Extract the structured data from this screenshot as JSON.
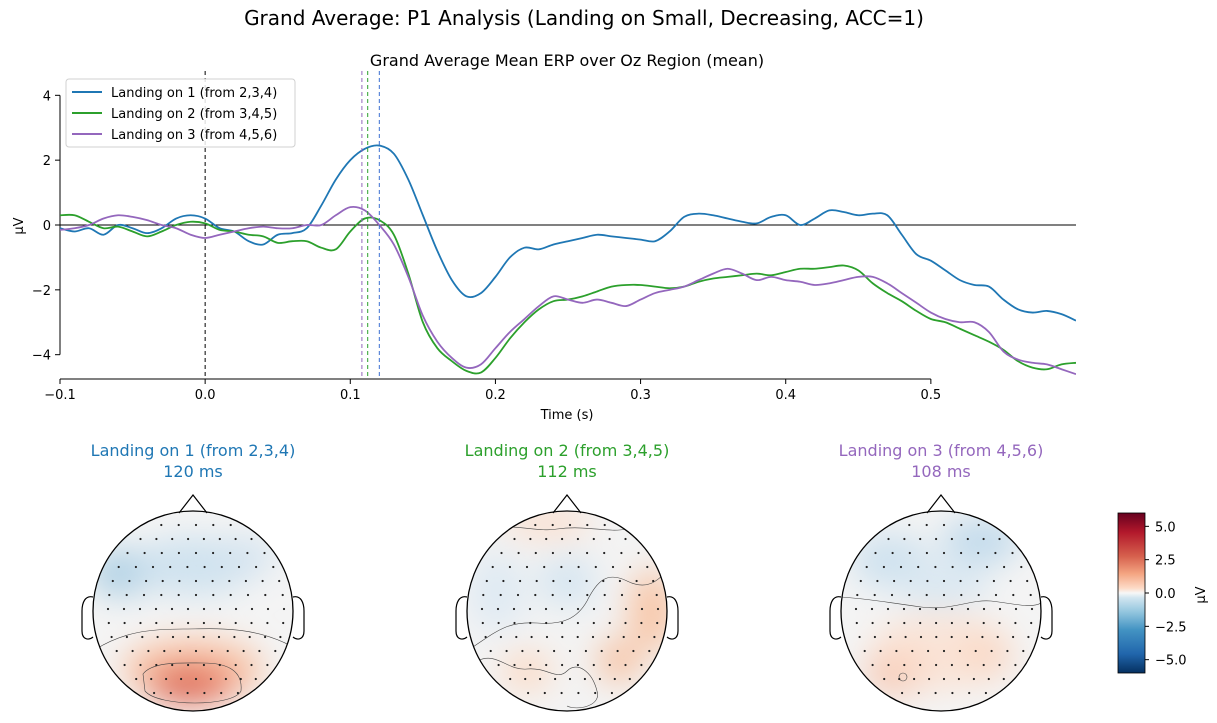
{
  "figure": {
    "suptitle": "Grand Average: P1 Analysis (Landing on Small, Decreasing, ACC=1)"
  },
  "chart_data": [
    {
      "type": "line",
      "title": "Grand Average Mean ERP over Oz Region (mean)",
      "xlabel": "Time (s)",
      "ylabel": "µV",
      "xlim": [
        -0.1,
        0.6
      ],
      "ylim": [
        -4.75,
        4.75
      ],
      "xticks": [
        -0.1,
        0.0,
        0.1,
        0.2,
        0.3,
        0.4,
        0.5
      ],
      "xtick_labels": [
        "−0.1",
        "0.0",
        "0.1",
        "0.2",
        "0.3",
        "0.4",
        "0.5"
      ],
      "yticks": [
        -4,
        -2,
        0,
        2,
        4
      ],
      "ytick_labels": [
        "−4",
        "−2",
        "0",
        "2",
        "4"
      ],
      "legend_position": "top-left",
      "event_line_x": 0.0,
      "series": [
        {
          "name": "Landing on 1 (from 2,3,4)",
          "color": "#1f77b4",
          "peak_time": 0.12,
          "x": [
            -0.1,
            -0.09,
            -0.08,
            -0.07,
            -0.06,
            -0.05,
            -0.04,
            -0.03,
            -0.02,
            -0.01,
            0,
            0.01,
            0.02,
            0.03,
            0.04,
            0.05,
            0.06,
            0.07,
            0.08,
            0.09,
            0.1,
            0.11,
            0.12,
            0.13,
            0.14,
            0.15,
            0.16,
            0.17,
            0.18,
            0.19,
            0.2,
            0.21,
            0.22,
            0.23,
            0.24,
            0.25,
            0.26,
            0.27,
            0.28,
            0.29,
            0.3,
            0.31,
            0.32,
            0.33,
            0.34,
            0.35,
            0.36,
            0.37,
            0.38,
            0.39,
            0.4,
            0.41,
            0.42,
            0.43,
            0.44,
            0.45,
            0.46,
            0.47,
            0.48,
            0.49,
            0.5,
            0.51,
            0.52,
            0.53,
            0.54,
            0.55,
            0.56,
            0.57,
            0.58,
            0.59,
            0.6
          ],
          "y": [
            -0.1,
            -0.2,
            -0.1,
            -0.3,
            0.0,
            -0.1,
            -0.25,
            -0.1,
            0.2,
            0.3,
            0.2,
            -0.1,
            -0.2,
            -0.5,
            -0.6,
            -0.3,
            -0.25,
            -0.1,
            0.6,
            1.4,
            2.0,
            2.35,
            2.45,
            2.2,
            1.4,
            0.3,
            -0.8,
            -1.7,
            -2.2,
            -2.1,
            -1.6,
            -1.0,
            -0.7,
            -0.75,
            -0.6,
            -0.5,
            -0.4,
            -0.3,
            -0.35,
            -0.4,
            -0.45,
            -0.5,
            -0.2,
            0.25,
            0.35,
            0.3,
            0.2,
            0.1,
            0.05,
            0.25,
            0.3,
            0.0,
            0.2,
            0.45,
            0.4,
            0.3,
            0.35,
            0.3,
            -0.3,
            -0.9,
            -1.1,
            -1.4,
            -1.7,
            -1.85,
            -1.9,
            -2.3,
            -2.6,
            -2.7,
            -2.65,
            -2.75,
            -2.95
          ]
        },
        {
          "name": "Landing on 2 (from 3,4,5)",
          "color": "#2ca02c",
          "peak_time": 0.112,
          "x": [
            -0.1,
            -0.09,
            -0.08,
            -0.07,
            -0.06,
            -0.05,
            -0.04,
            -0.03,
            -0.02,
            -0.01,
            0,
            0.01,
            0.02,
            0.03,
            0.04,
            0.05,
            0.06,
            0.07,
            0.08,
            0.09,
            0.1,
            0.11,
            0.12,
            0.13,
            0.14,
            0.15,
            0.16,
            0.17,
            0.18,
            0.19,
            0.2,
            0.21,
            0.22,
            0.23,
            0.24,
            0.25,
            0.26,
            0.27,
            0.28,
            0.29,
            0.3,
            0.31,
            0.32,
            0.33,
            0.34,
            0.35,
            0.36,
            0.37,
            0.38,
            0.39,
            0.4,
            0.41,
            0.42,
            0.43,
            0.44,
            0.45,
            0.46,
            0.47,
            0.48,
            0.49,
            0.5,
            0.51,
            0.52,
            0.53,
            0.54,
            0.55,
            0.56,
            0.57,
            0.58,
            0.59,
            0.6
          ],
          "y": [
            0.3,
            0.3,
            0.1,
            -0.1,
            -0.05,
            -0.2,
            -0.35,
            -0.2,
            0.0,
            0.1,
            0.05,
            -0.15,
            -0.2,
            -0.3,
            -0.35,
            -0.55,
            -0.5,
            -0.5,
            -0.7,
            -0.75,
            -0.2,
            0.2,
            0.15,
            -0.3,
            -1.5,
            -3.0,
            -3.8,
            -4.2,
            -4.5,
            -4.55,
            -4.1,
            -3.5,
            -3.0,
            -2.6,
            -2.35,
            -2.3,
            -2.2,
            -2.05,
            -1.9,
            -1.85,
            -1.85,
            -1.9,
            -1.95,
            -1.9,
            -1.75,
            -1.65,
            -1.6,
            -1.55,
            -1.5,
            -1.55,
            -1.45,
            -1.35,
            -1.35,
            -1.3,
            -1.25,
            -1.4,
            -1.8,
            -2.1,
            -2.35,
            -2.65,
            -2.9,
            -3.0,
            -3.2,
            -3.4,
            -3.6,
            -3.85,
            -4.2,
            -4.4,
            -4.45,
            -4.3,
            -4.25
          ]
        },
        {
          "name": "Landing on 3 (from 4,5,6)",
          "color": "#9467bd",
          "peak_time": 0.108,
          "x": [
            -0.1,
            -0.09,
            -0.08,
            -0.07,
            -0.06,
            -0.05,
            -0.04,
            -0.03,
            -0.02,
            -0.01,
            0,
            0.01,
            0.02,
            0.03,
            0.04,
            0.05,
            0.06,
            0.07,
            0.08,
            0.09,
            0.1,
            0.11,
            0.12,
            0.13,
            0.14,
            0.15,
            0.16,
            0.17,
            0.18,
            0.19,
            0.2,
            0.21,
            0.22,
            0.23,
            0.24,
            0.25,
            0.26,
            0.27,
            0.28,
            0.29,
            0.3,
            0.31,
            0.32,
            0.33,
            0.34,
            0.35,
            0.36,
            0.37,
            0.38,
            0.39,
            0.4,
            0.41,
            0.42,
            0.43,
            0.44,
            0.45,
            0.46,
            0.47,
            0.48,
            0.49,
            0.5,
            0.51,
            0.52,
            0.53,
            0.54,
            0.55,
            0.56,
            0.57,
            0.58,
            0.59,
            0.6
          ],
          "y": [
            -0.15,
            -0.1,
            0.0,
            0.2,
            0.3,
            0.25,
            0.15,
            0.0,
            -0.1,
            -0.3,
            -0.4,
            -0.3,
            -0.2,
            -0.1,
            -0.05,
            -0.1,
            -0.1,
            0.0,
            0.0,
            0.3,
            0.55,
            0.45,
            0.0,
            -0.6,
            -1.6,
            -2.8,
            -3.6,
            -4.1,
            -4.4,
            -4.3,
            -3.8,
            -3.3,
            -2.9,
            -2.5,
            -2.2,
            -2.3,
            -2.4,
            -2.3,
            -2.4,
            -2.5,
            -2.3,
            -2.1,
            -2.0,
            -1.9,
            -1.7,
            -1.5,
            -1.35,
            -1.5,
            -1.7,
            -1.6,
            -1.7,
            -1.75,
            -1.85,
            -1.8,
            -1.7,
            -1.6,
            -1.6,
            -1.8,
            -2.1,
            -2.4,
            -2.7,
            -2.9,
            -3.0,
            -3.0,
            -3.3,
            -3.9,
            -4.15,
            -4.25,
            -4.3,
            -4.45,
            -4.6
          ]
        }
      ]
    },
    {
      "type": "heatmap",
      "subtype": "topomap",
      "colorbar_label": "µV",
      "colorbar_range": [
        -6,
        6
      ],
      "colorbar_ticks": [
        5.0,
        2.5,
        0.0,
        -2.5,
        -5.0
      ],
      "colorbar_tick_labels": [
        "5.0",
        "2.5",
        "0.0",
        "−2.5",
        "−5.0"
      ],
      "maps": [
        {
          "title": "Landing on 1 (from 2,3,4)",
          "time_label": "120 ms",
          "color": "#1f77b4",
          "pattern": "frontal negative, occipital positive peak ≈ +4 µV"
        },
        {
          "title": "Landing on 2 (from 3,4,5)",
          "time_label": "112 ms",
          "color": "#2ca02c",
          "pattern": "weak, mixed; right temporal positive ≈ +1 µV"
        },
        {
          "title": "Landing on 3 (from 4,5,6)",
          "time_label": "108 ms",
          "color": "#9467bd",
          "pattern": "frontal negative, bilateral occipital positive ≈ +2 µV"
        }
      ]
    }
  ]
}
